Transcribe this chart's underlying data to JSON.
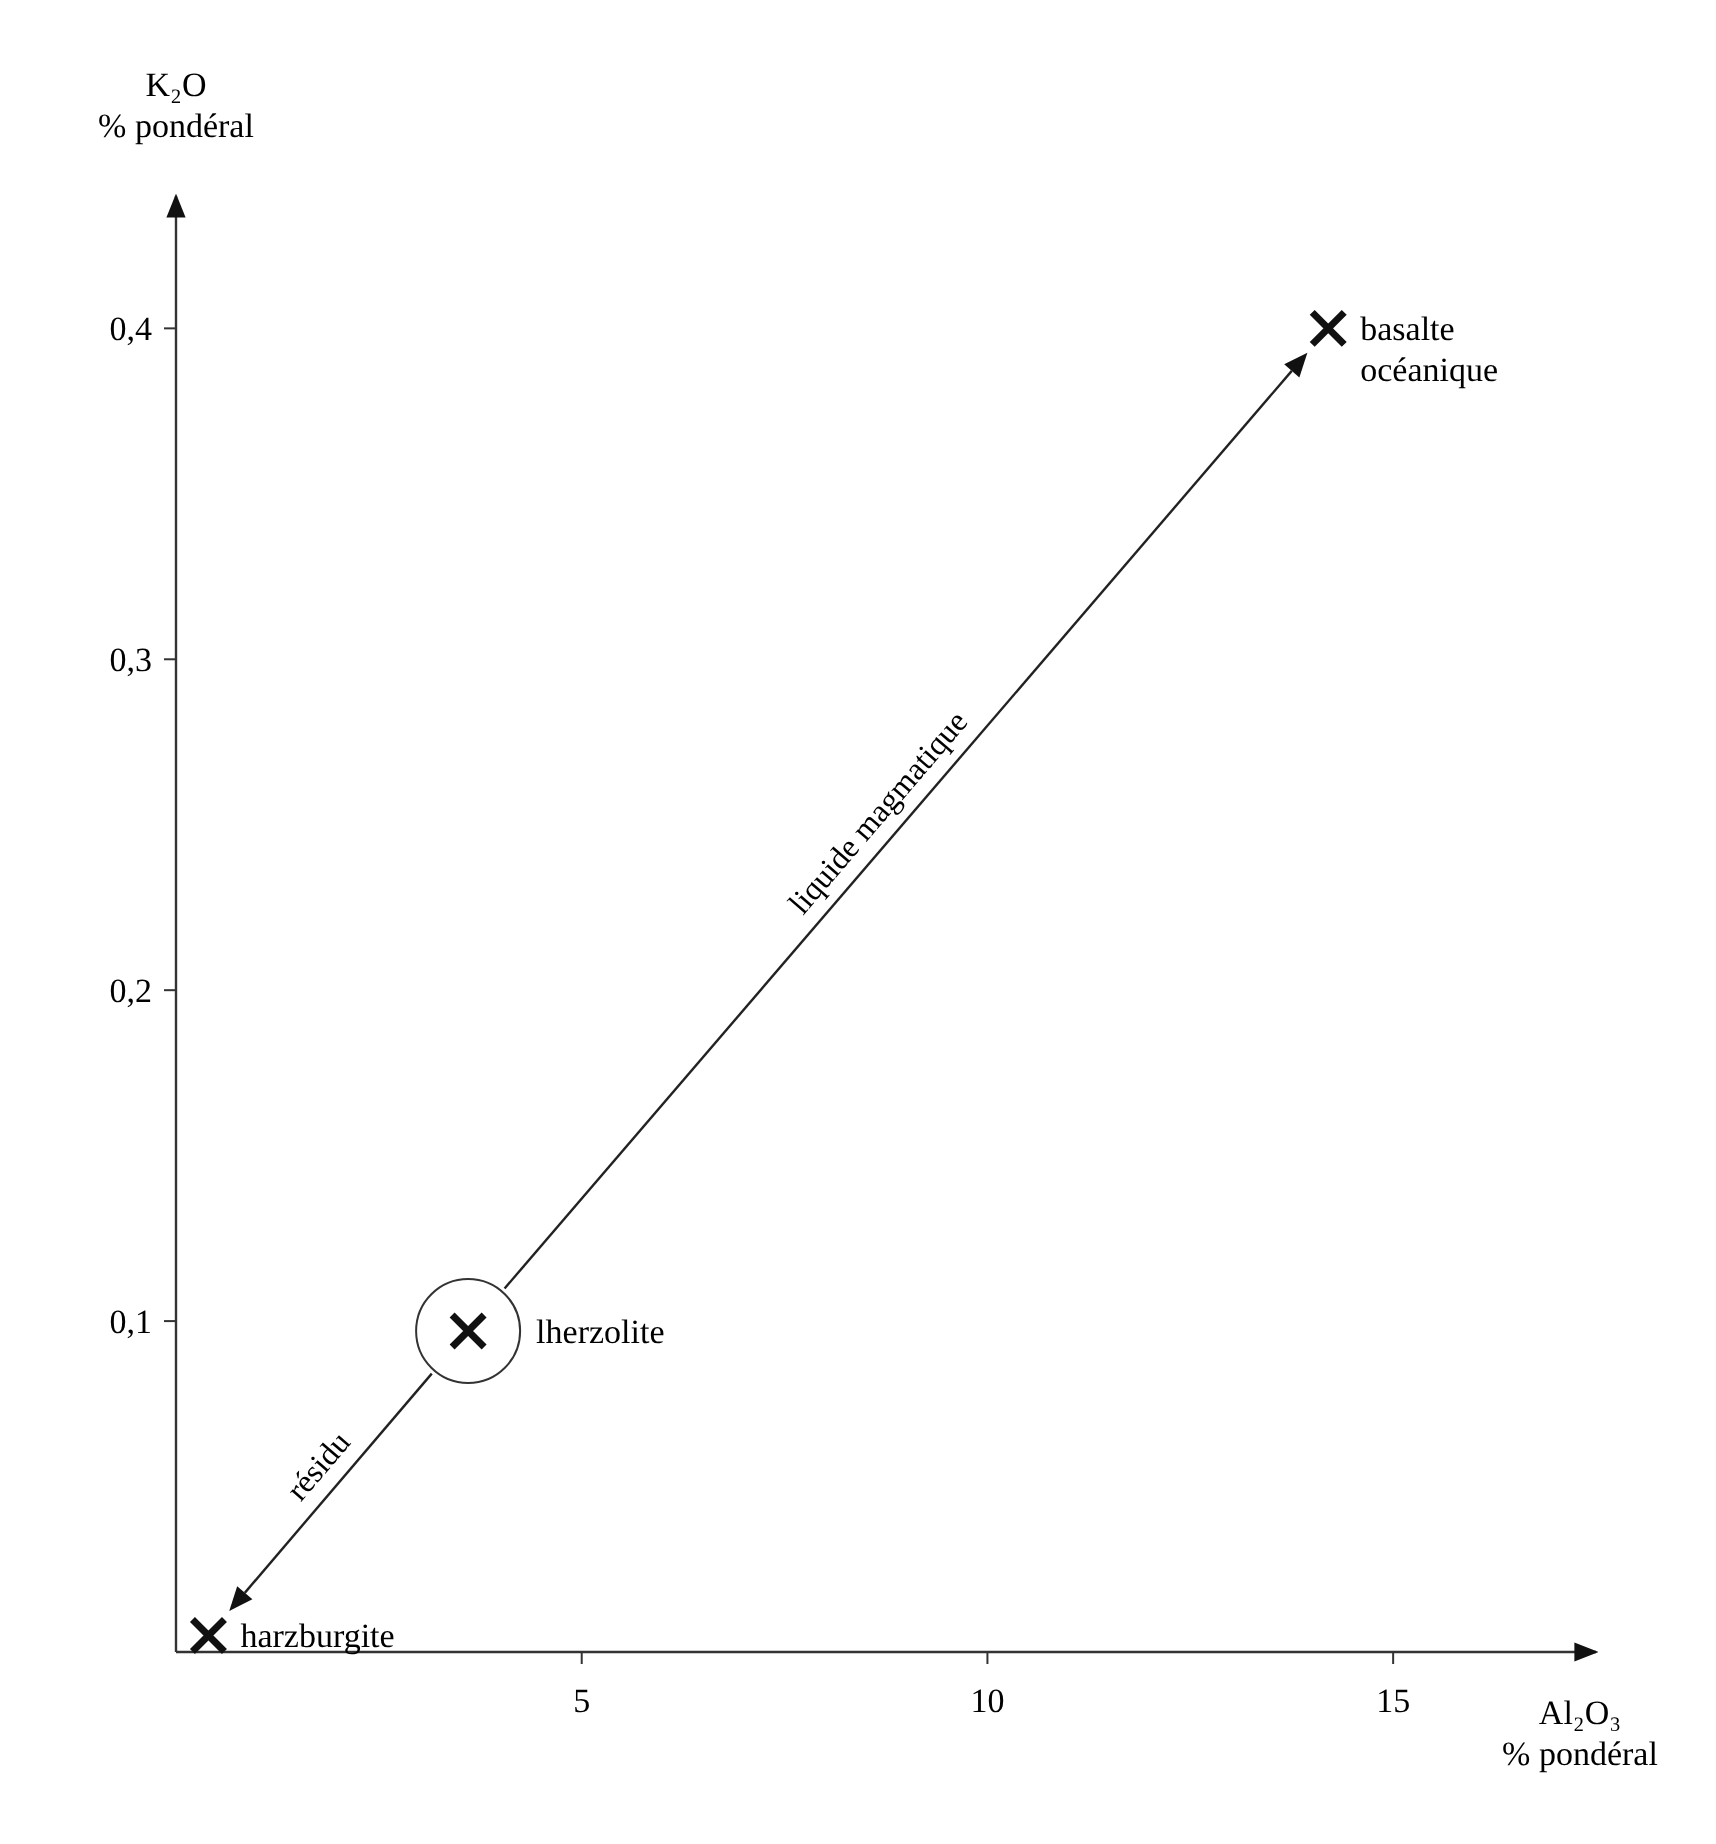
{
  "chart_data": {
    "type": "scatter",
    "xlabel": "Al₂O₃\n% pondéral",
    "ylabel": "K₂O\n% pondéral",
    "xlim": [
      0,
      17.5
    ],
    "ylim": [
      0,
      0.44
    ],
    "xticks": [
      5,
      10,
      15
    ],
    "yticks": [
      {
        "value": 0.1,
        "label": "0,1"
      },
      {
        "value": 0.2,
        "label": "0,2"
      },
      {
        "value": 0.3,
        "label": "0,3"
      },
      {
        "value": 0.4,
        "label": "0,4"
      }
    ],
    "marker": "cross",
    "grid": false,
    "series": [
      {
        "name": "harzburgite",
        "color": "#111111",
        "x": [
          0.4
        ],
        "values": [
          0.005
        ]
      },
      {
        "name": "lherzolite",
        "color": "#111111",
        "x": [
          3.6
        ],
        "values": [
          0.097
        ]
      },
      {
        "name": "basalte\nocéanique",
        "color": "#111111",
        "x": [
          14.2
        ],
        "values": [
          0.4
        ]
      }
    ],
    "annotations": [
      "résidu",
      "liquide magmatique"
    ]
  }
}
